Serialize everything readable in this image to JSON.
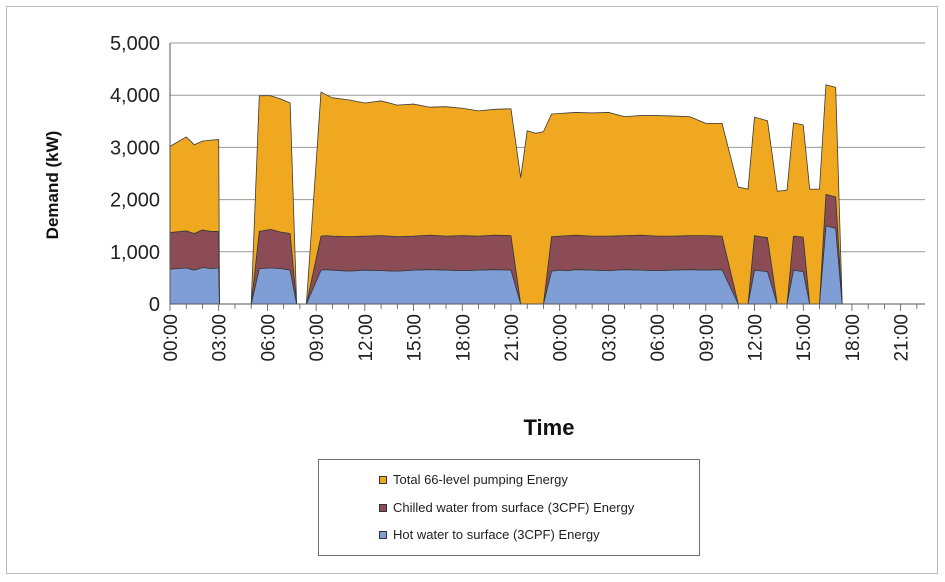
{
  "chart_data": {
    "type": "area",
    "stacked": true,
    "ylabel": "Demand (kW)",
    "xlabel": "Time",
    "ylim": [
      0,
      5000
    ],
    "y_ticks": [
      "0",
      "1,000",
      "2,000",
      "3,000",
      "4,000",
      "5,000"
    ],
    "x_tick_labels": [
      "00:00",
      "03:00",
      "06:00",
      "09:00",
      "12:00",
      "15:00",
      "18:00",
      "21:00",
      "00:00",
      "03:00",
      "06:00",
      "09:00",
      "12:00",
      "15:00",
      "18:00",
      "21:00"
    ],
    "x_hours_range": [
      0,
      46.5
    ],
    "grid": "horizontal",
    "legend_position": "bottom",
    "x": [
      0,
      1,
      1.5,
      2,
      2.5,
      3,
      3.05,
      3.6,
      5,
      5.5,
      6.2,
      6.8,
      7.4,
      7.8,
      8.4,
      9.3,
      9.6,
      10,
      11,
      12,
      13,
      14,
      15,
      16,
      17,
      18,
      19,
      20,
      21,
      21.6,
      22,
      22.5,
      23,
      23.5,
      24,
      24.5,
      25,
      26,
      27,
      28,
      29,
      30,
      31,
      32,
      33,
      34,
      35,
      35.6,
      36,
      36.8,
      37.4,
      38,
      38.4,
      39,
      39.4,
      40,
      40.4,
      41,
      41.4,
      42,
      42.4,
      43,
      43.6,
      44,
      44.4
    ],
    "series": [
      {
        "name": "Hot water to surface (3CPF) Energy",
        "color": "#7f9ed6",
        "values": [
          670,
          690,
          650,
          700,
          680,
          690,
          0,
          0,
          0,
          680,
          690,
          680,
          650,
          0,
          0,
          650,
          660,
          650,
          630,
          650,
          640,
          630,
          650,
          660,
          650,
          640,
          650,
          660,
          650,
          0,
          0,
          0,
          0,
          630,
          650,
          640,
          660,
          650,
          640,
          660,
          650,
          640,
          650,
          660,
          650,
          660,
          0,
          0,
          650,
          620,
          0,
          0,
          650,
          620,
          0,
          0,
          1500,
          1450,
          0,
          0,
          0,
          0,
          0,
          0,
          0
        ]
      },
      {
        "name": "Chilled water from surface (3CPF) Energy",
        "color": "#8b4c55",
        "values": [
          700,
          710,
          700,
          720,
          710,
          700,
          0,
          0,
          0,
          710,
          740,
          700,
          700,
          0,
          0,
          650,
          650,
          650,
          660,
          650,
          670,
          660,
          650,
          660,
          650,
          670,
          650,
          660,
          660,
          0,
          0,
          0,
          0,
          660,
          650,
          670,
          660,
          650,
          660,
          650,
          670,
          660,
          650,
          650,
          660,
          640,
          0,
          0,
          660,
          650,
          0,
          0,
          650,
          660,
          0,
          0,
          600,
          600,
          0,
          0,
          0,
          0,
          0,
          0,
          0
        ]
      },
      {
        "name": "Total 66-level pumping Energy",
        "color": "#f0a820",
        "values": [
          1650,
          1800,
          1700,
          1700,
          1750,
          1760,
          0,
          0,
          0,
          2600,
          2560,
          2550,
          2500,
          0,
          0,
          2760,
          2700,
          2650,
          2620,
          2550,
          2580,
          2520,
          2530,
          2450,
          2480,
          2440,
          2400,
          2410,
          2430,
          2420,
          3320,
          3270,
          3300,
          2350,
          2350,
          2350,
          2350,
          2360,
          2370,
          2280,
          2290,
          2310,
          2300,
          2280,
          2150,
          2160,
          2240,
          2200,
          2270,
          2240,
          2160,
          2180,
          2170,
          2150,
          2200,
          2200,
          2100,
          2100,
          0,
          0,
          0,
          0,
          0,
          0,
          0
        ]
      }
    ]
  }
}
